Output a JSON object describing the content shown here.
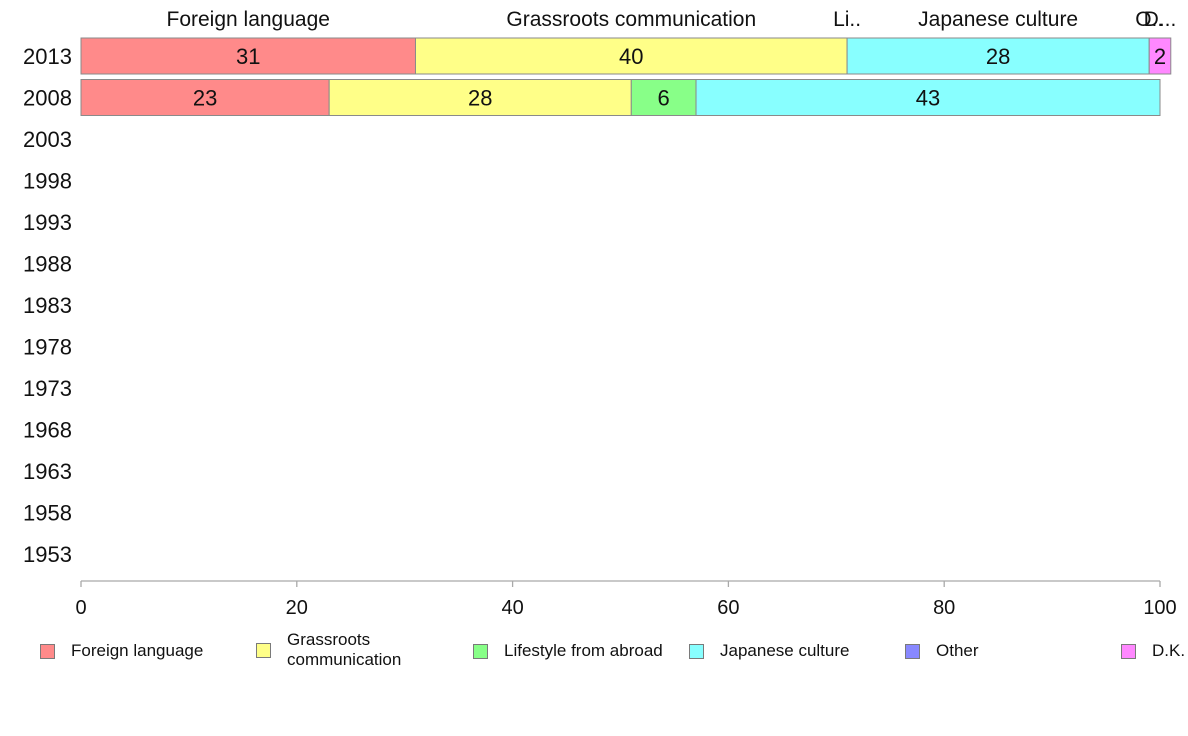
{
  "chart_data": {
    "type": "bar",
    "orientation": "horizontal",
    "stacked": true,
    "categories": [
      "2013",
      "2008",
      "2003",
      "1998",
      "1993",
      "1988",
      "1983",
      "1978",
      "1973",
      "1968",
      "1963",
      "1958",
      "1953"
    ],
    "series": [
      {
        "name": "Foreign language",
        "color": "#ff8a8a",
        "values": [
          31,
          23,
          null,
          null,
          null,
          null,
          null,
          null,
          null,
          null,
          null,
          null,
          null
        ]
      },
      {
        "name": "Grassroots communication",
        "color": "#ffff88",
        "values": [
          40,
          28,
          null,
          null,
          null,
          null,
          null,
          null,
          null,
          null,
          null,
          null,
          null
        ]
      },
      {
        "name": "Lifestyle from abroad",
        "color": "#88ff88",
        "values": [
          0,
          6,
          null,
          null,
          null,
          null,
          null,
          null,
          null,
          null,
          null,
          null,
          null
        ]
      },
      {
        "name": "Japanese culture",
        "color": "#88ffff",
        "values": [
          28,
          43,
          null,
          null,
          null,
          null,
          null,
          null,
          null,
          null,
          null,
          null,
          null
        ]
      },
      {
        "name": "Other",
        "color": "#8888ff",
        "values": [
          0,
          0,
          null,
          null,
          null,
          null,
          null,
          null,
          null,
          null,
          null,
          null,
          null
        ]
      },
      {
        "name": "D.K.",
        "color": "#ff88ff",
        "values": [
          2,
          0,
          null,
          null,
          null,
          null,
          null,
          null,
          null,
          null,
          null,
          null,
          null
        ]
      }
    ],
    "top_labels": [
      "Foreign language",
      "Grassroots communication",
      "Li..",
      "Japanese culture",
      "O..",
      "D..."
    ],
    "xlim": [
      0,
      100
    ],
    "xticks": [
      0,
      20,
      40,
      60,
      80,
      100
    ],
    "grid": false,
    "legend_position": "bottom"
  }
}
